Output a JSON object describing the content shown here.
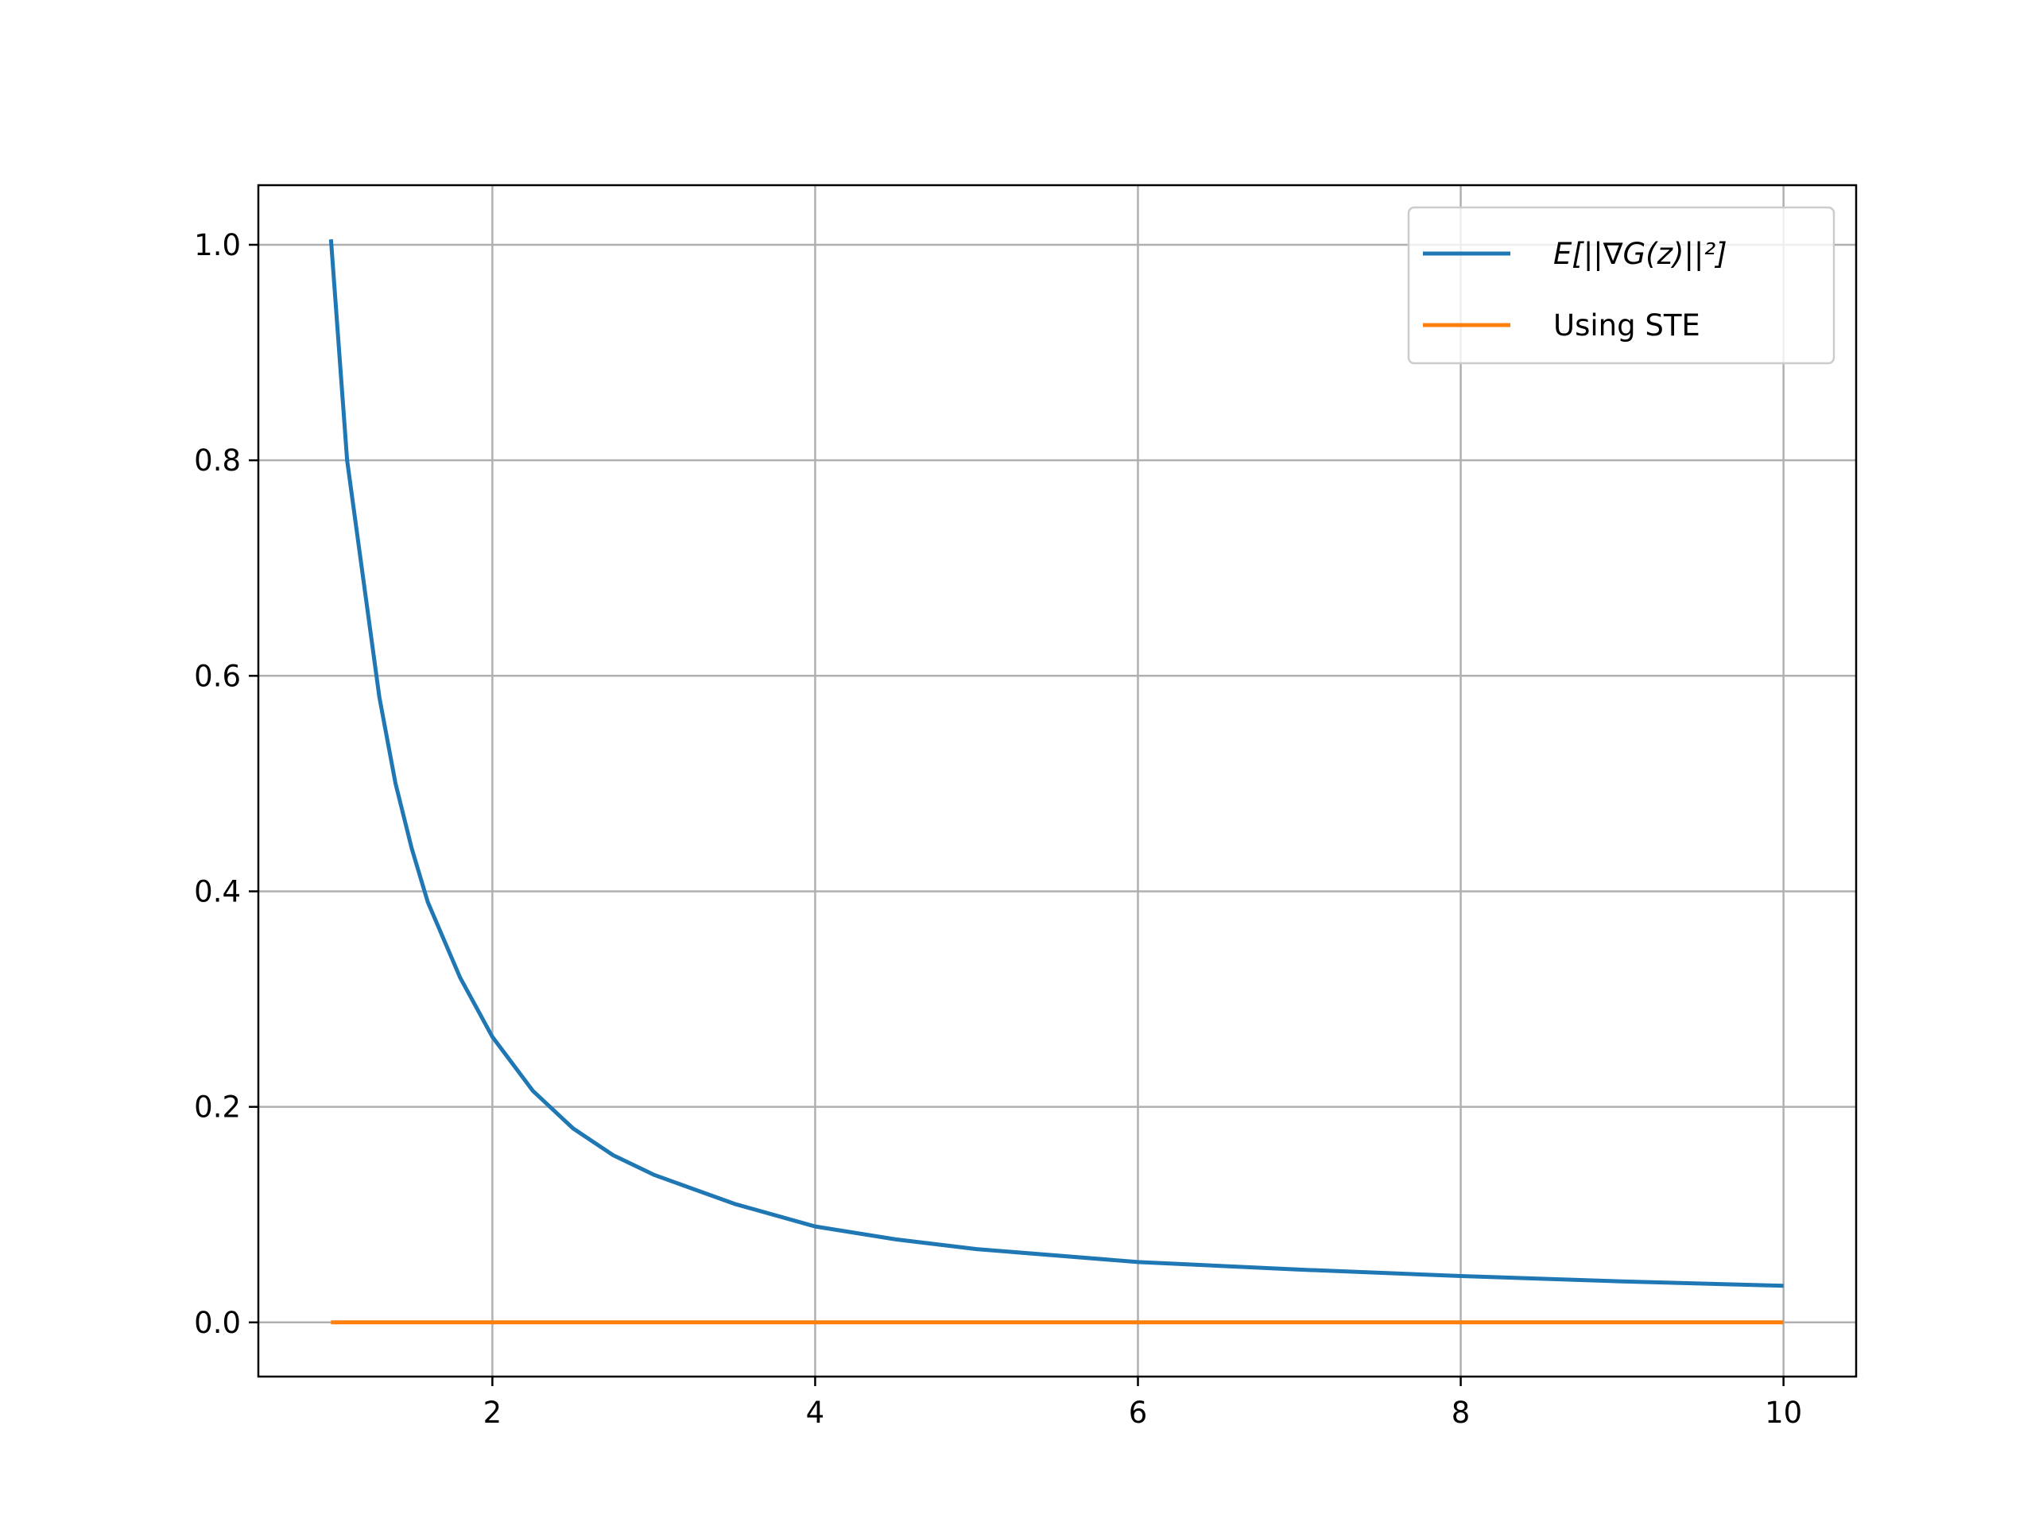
{
  "chart_data": {
    "type": "line",
    "legend": "upper right",
    "grid": true,
    "xlim": [
      0.55,
      10.45
    ],
    "xticks": [
      2,
      4,
      6,
      8,
      10
    ],
    "ylim": [
      -0.0503,
      1.0553
    ],
    "yticks": [
      {
        "value": 0,
        "label": "0.0"
      },
      0.2,
      0.4,
      0.6,
      0.8,
      {
        "value": 1,
        "label": "1.0"
      }
    ],
    "series": [
      {
        "name": "E[||∇G(z)||²]",
        "color": "#1f77b4",
        "x": [
          1,
          1.1,
          1.2,
          1.3,
          1.4,
          1.5,
          1.6,
          1.8,
          2,
          2.25,
          2.5,
          2.75,
          3,
          3.5,
          4,
          4.5,
          5,
          6,
          7,
          8,
          9,
          10
        ],
        "values": [
          1.005,
          0.8,
          0.69,
          0.58,
          0.5,
          0.44,
          0.39,
          0.32,
          0.265,
          0.215,
          0.18,
          0.155,
          0.137,
          0.11,
          0.089,
          0.077,
          0.068,
          0.056,
          0.049,
          0.043,
          0.038,
          0.034
        ]
      },
      {
        "name": "Using STE",
        "color": "#ff7f0e",
        "x": [
          1,
          10
        ],
        "values": [
          0,
          0
        ]
      }
    ]
  }
}
